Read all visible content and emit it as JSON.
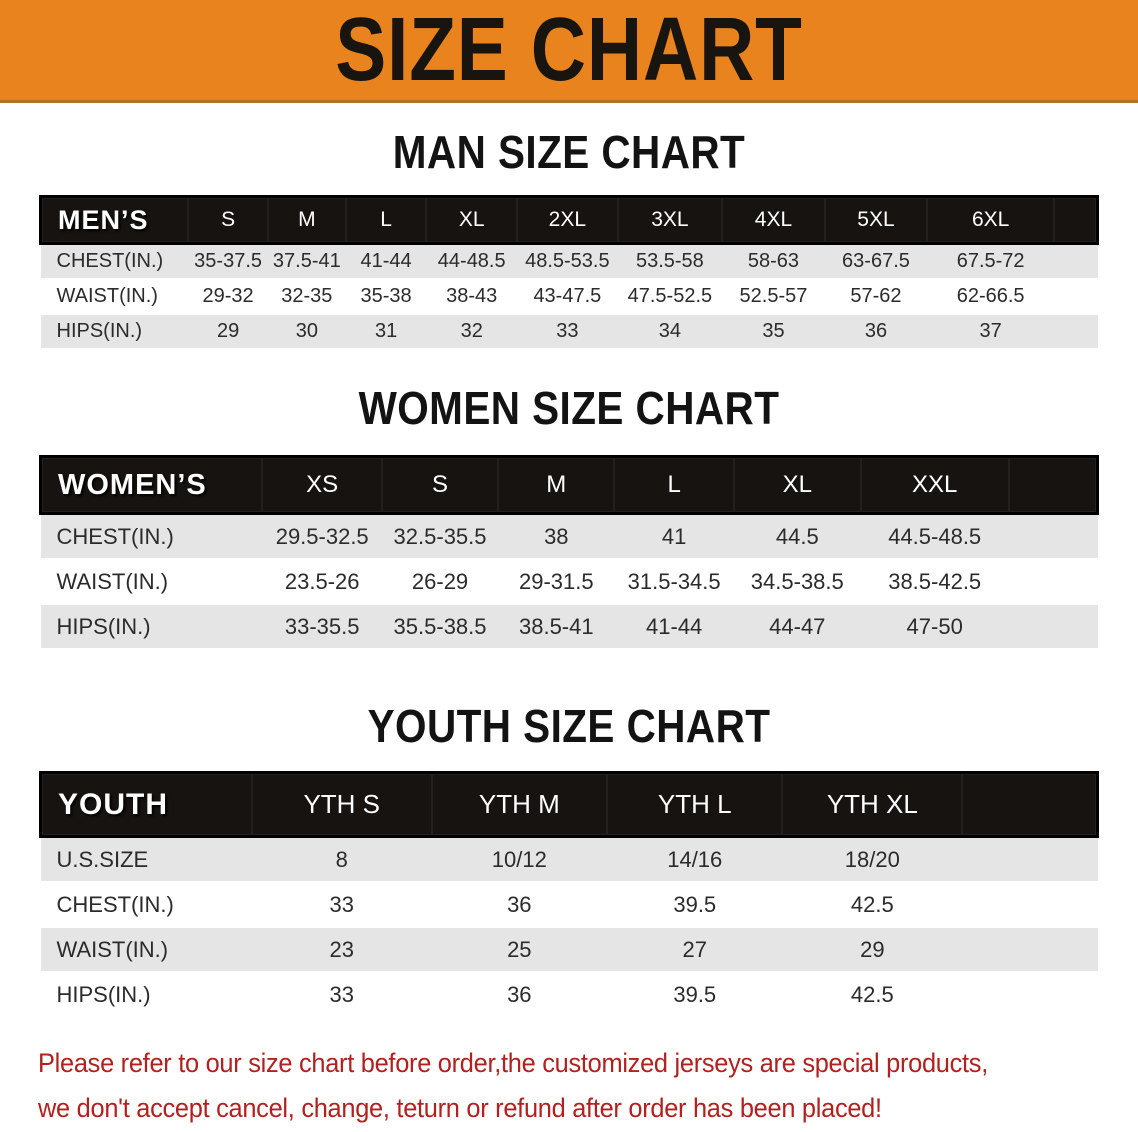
{
  "banner": {
    "title": "SIZE CHART",
    "bg_color": "#e8831d",
    "text_color": "#181510"
  },
  "sections": [
    {
      "title": "MAN SIZE CHART",
      "header_label": "MEN’S",
      "columns": [
        "S",
        "M",
        "L",
        "XL",
        "2XL",
        "3XL",
        "4XL",
        "5XL",
        "6XL"
      ],
      "rows": [
        {
          "label": "CHEST(IN.)",
          "values": [
            "35-37.5",
            "37.5-41",
            "41-44",
            "44-48.5",
            "48.5-53.5",
            "53.5-58",
            "58-63",
            "63-67.5",
            "67.5-72"
          ]
        },
        {
          "label": "WAIST(IN.)",
          "values": [
            "29-32",
            "32-35",
            "35-38",
            "38-43",
            "43-47.5",
            "47.5-52.5",
            "52.5-57",
            "57-62",
            "62-66.5"
          ]
        },
        {
          "label": "HIPS(IN.)",
          "values": [
            "29",
            "30",
            "31",
            "32",
            "33",
            "34",
            "35",
            "36",
            "37"
          ]
        }
      ]
    },
    {
      "title": "WOMEN SIZE CHART",
      "header_label": "WOMEN’S",
      "columns": [
        "XS",
        "S",
        "M",
        "L",
        "XL",
        "XXL"
      ],
      "rows": [
        {
          "label": "CHEST(IN.)",
          "values": [
            "29.5-32.5",
            "32.5-35.5",
            "38",
            "41",
            "44.5",
            "44.5-48.5"
          ]
        },
        {
          "label": "WAIST(IN.)",
          "values": [
            "23.5-26",
            "26-29",
            "29-31.5",
            "31.5-34.5",
            "34.5-38.5",
            "38.5-42.5"
          ]
        },
        {
          "label": "HIPS(IN.)",
          "values": [
            "33-35.5",
            "35.5-38.5",
            "38.5-41",
            "41-44",
            "44-47",
            "47-50"
          ]
        }
      ]
    },
    {
      "title": "YOUTH SIZE CHART",
      "header_label": "YOUTH",
      "columns": [
        "YTH S",
        "YTH M",
        "YTH L",
        "YTH XL"
      ],
      "rows": [
        {
          "label": "U.S.SIZE",
          "values": [
            "8",
            "10/12",
            "14/16",
            "18/20"
          ]
        },
        {
          "label": "CHEST(IN.)",
          "values": [
            "33",
            "36",
            "39.5",
            "42.5"
          ]
        },
        {
          "label": "WAIST(IN.)",
          "values": [
            "23",
            "25",
            "27",
            "29"
          ]
        },
        {
          "label": "HIPS(IN.)",
          "values": [
            "33",
            "36",
            "39.5",
            "42.5"
          ]
        }
      ]
    }
  ],
  "table_style": {
    "header_bar_color": "#171310",
    "header_text_color": "#ffffff",
    "stripe_color": "#e5e5e5",
    "body_text_color": "#2b2b2b"
  },
  "disclaimer": {
    "line1": "Please refer to our size chart before order,the customized jerseys are special products,",
    "line2": "we don't accept cancel, change, teturn or refund after order has been placed!",
    "color": "#b02120"
  }
}
